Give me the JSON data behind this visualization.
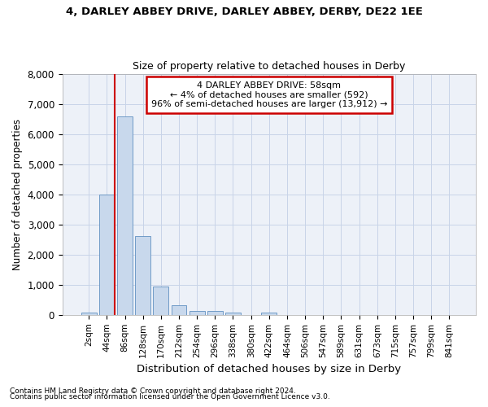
{
  "title_line1": "4, DARLEY ABBEY DRIVE, DARLEY ABBEY, DERBY, DE22 1EE",
  "title_line2": "Size of property relative to detached houses in Derby",
  "xlabel": "Distribution of detached houses by size in Derby",
  "ylabel": "Number of detached properties",
  "bin_labels": [
    "2sqm",
    "44sqm",
    "86sqm",
    "128sqm",
    "170sqm",
    "212sqm",
    "254sqm",
    "296sqm",
    "338sqm",
    "380sqm",
    "422sqm",
    "464sqm",
    "506sqm",
    "547sqm",
    "589sqm",
    "631sqm",
    "673sqm",
    "715sqm",
    "757sqm",
    "799sqm",
    "841sqm"
  ],
  "bar_values": [
    70,
    4000,
    6600,
    2620,
    950,
    330,
    130,
    130,
    80,
    0,
    80,
    0,
    0,
    0,
    0,
    0,
    0,
    0,
    0,
    0,
    0
  ],
  "bar_color": "#c8d8ec",
  "bar_edge_color": "#6090c0",
  "grid_color": "#c8d4e8",
  "background_color": "#edf1f8",
  "annotation_title": "4 DARLEY ABBEY DRIVE: 58sqm",
  "annotation_line2": "← 4% of detached houses are smaller (592)",
  "annotation_line3": "96% of semi-detached houses are larger (13,912) →",
  "annotation_box_color": "#ffffff",
  "annotation_border_color": "#cc0000",
  "property_line_color": "#cc0000",
  "property_line_x": 1.45,
  "ylim": [
    0,
    8000
  ],
  "yticks": [
    0,
    1000,
    2000,
    3000,
    4000,
    5000,
    6000,
    7000,
    8000
  ],
  "footnote1": "Contains HM Land Registry data © Crown copyright and database right 2024.",
  "footnote2": "Contains public sector information licensed under the Open Government Licence v3.0."
}
